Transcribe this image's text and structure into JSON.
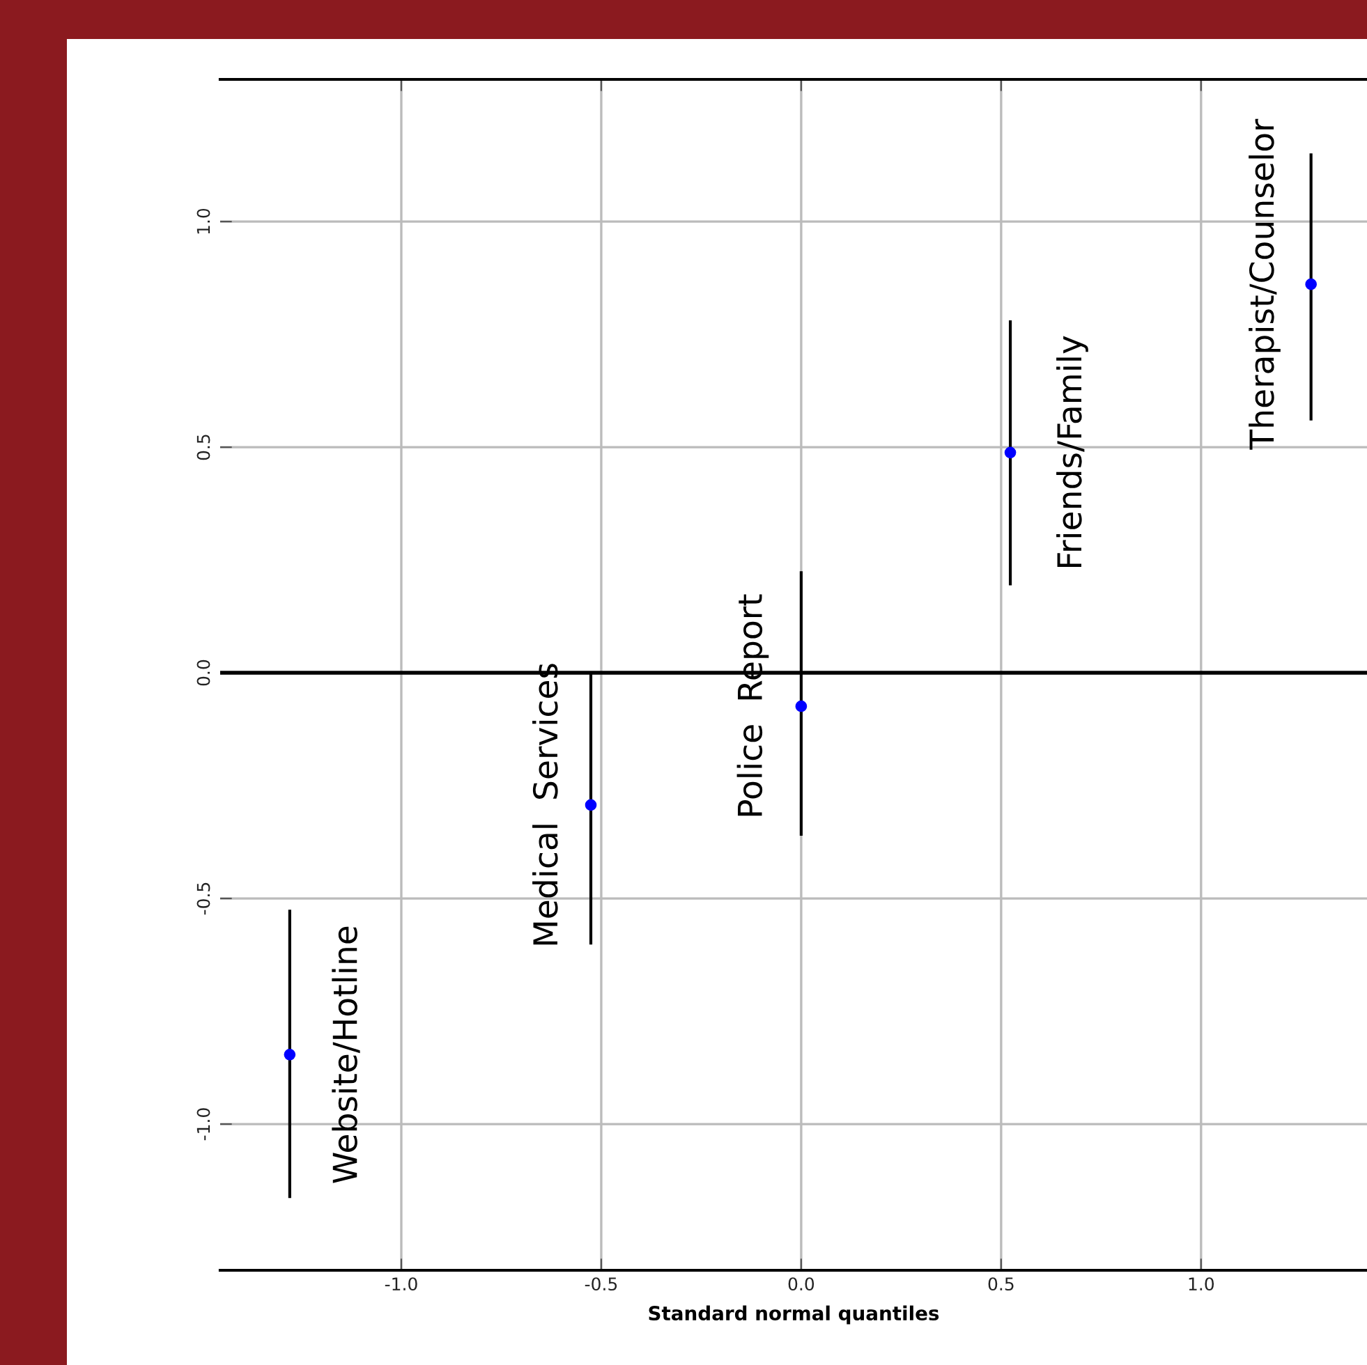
{
  "chart_data": {
    "type": "scatter",
    "xlabel": "Standard normal quantiles",
    "x": [
      -1.279,
      -0.526,
      0.0,
      0.523,
      1.275
    ],
    "series": [
      {
        "color": "#0000ff",
        "values": [
          -0.846,
          -0.293,
          -0.074,
          0.488,
          0.861
        ],
        "errors": [
          [
            -1.164,
            -0.525
          ],
          [
            -0.602,
            0.0
          ],
          [
            -0.361,
            0.225
          ],
          [
            0.194,
            0.781
          ],
          [
            0.559,
            1.151
          ]
        ]
      }
    ],
    "annotations": [
      {
        "text": "Website/Hotline",
        "x": -1.279,
        "y": -0.846
      },
      {
        "text": "Medical  Services",
        "x": -0.526,
        "y": -0.293
      },
      {
        "text": "Police  Report",
        "x": 0.0,
        "y": -0.074
      },
      {
        "text": "Friends/Family",
        "x": 0.523,
        "y": 0.488
      },
      {
        "text": "Therapist/Counselor",
        "x": 1.275,
        "y": 0.861
      }
    ],
    "xlim": [
      -1.453,
      1.415
    ],
    "ylim": [
      -1.324,
      1.315
    ],
    "xticks": [
      {
        "value": -1,
        "label": "-1.0"
      },
      -0.5,
      {
        "value": 0,
        "label": "0.0"
      },
      0.5,
      {
        "value": 1,
        "label": "1.0"
      }
    ],
    "yticks": [
      {
        "value": -1,
        "label": "-1.0"
      },
      -0.5,
      {
        "value": 0,
        "label": "0.0"
      },
      0.5,
      {
        "value": 1,
        "label": "1.0"
      }
    ],
    "ref_lines": [
      {
        "axis": "y",
        "value": 0,
        "color": "#000000"
      }
    ],
    "grid": true,
    "marker": "circle"
  }
}
